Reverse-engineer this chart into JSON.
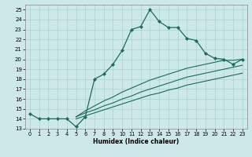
{
  "xlabel": "Humidex (Indice chaleur)",
  "background_color": "#cce8e8",
  "grid_color": "#aad0d0",
  "line_color": "#1a6b5a",
  "xlim": [
    -0.5,
    23.5
  ],
  "ylim": [
    13,
    25.5
  ],
  "yticks": [
    13,
    14,
    15,
    16,
    17,
    18,
    19,
    20,
    21,
    22,
    23,
    24,
    25
  ],
  "xticks": [
    0,
    1,
    2,
    3,
    4,
    5,
    6,
    7,
    8,
    9,
    10,
    11,
    12,
    13,
    14,
    15,
    16,
    17,
    18,
    19,
    20,
    21,
    22,
    23
  ],
  "main_x": [
    0,
    1,
    2,
    3,
    4,
    5,
    6,
    7,
    8,
    9,
    10,
    11,
    12,
    13,
    14,
    15,
    16,
    17,
    18,
    19,
    20,
    21,
    22,
    23
  ],
  "main_y": [
    14.5,
    14.0,
    14.0,
    14.0,
    14.0,
    13.2,
    14.2,
    18.0,
    18.5,
    19.5,
    20.9,
    23.0,
    23.3,
    25.0,
    23.8,
    23.2,
    23.2,
    22.1,
    21.9,
    20.6,
    20.1,
    20.0,
    19.5,
    20.0
  ],
  "ret_x1": [
    5,
    6,
    7,
    8,
    9,
    10,
    11,
    12,
    13,
    14,
    15,
    16,
    17,
    18,
    19,
    20,
    21,
    22,
    23
  ],
  "ret_y1": [
    14.2,
    14.8,
    15.3,
    15.8,
    16.2,
    16.7,
    17.1,
    17.5,
    17.9,
    18.2,
    18.5,
    18.8,
    19.1,
    19.3,
    19.5,
    19.7,
    19.9,
    19.9,
    20.0
  ],
  "ret_x2": [
    5,
    6,
    7,
    8,
    9,
    10,
    11,
    12,
    13,
    14,
    15,
    16,
    17,
    18,
    19,
    20,
    21,
    22,
    23
  ],
  "ret_y2": [
    14.2,
    14.6,
    14.9,
    15.3,
    15.6,
    16.0,
    16.3,
    16.7,
    17.0,
    17.3,
    17.6,
    17.9,
    18.2,
    18.4,
    18.6,
    18.8,
    19.0,
    19.2,
    19.4
  ],
  "ret_x3": [
    5,
    6,
    7,
    8,
    9,
    10,
    11,
    12,
    13,
    14,
    15,
    16,
    17,
    18,
    19,
    20,
    21,
    22,
    23
  ],
  "ret_y3": [
    14.0,
    14.3,
    14.6,
    14.9,
    15.2,
    15.5,
    15.8,
    16.1,
    16.4,
    16.6,
    16.9,
    17.1,
    17.4,
    17.6,
    17.8,
    18.0,
    18.2,
    18.4,
    18.6
  ]
}
